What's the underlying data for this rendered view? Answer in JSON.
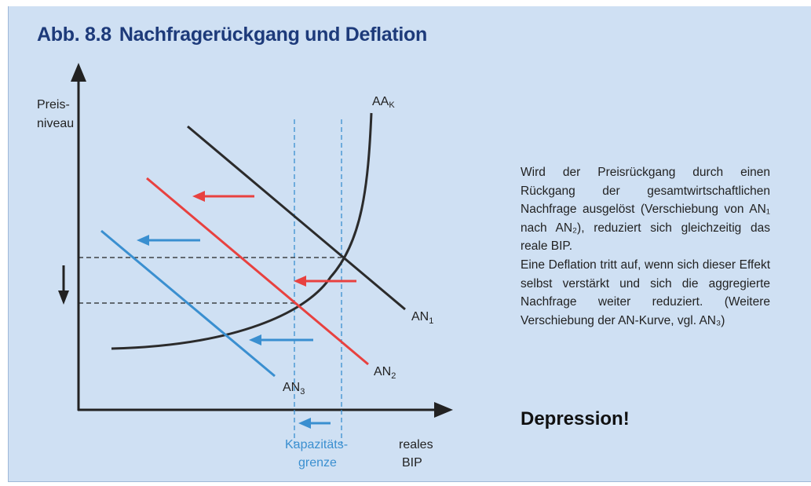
{
  "title": {
    "number": "Abb. 8.8",
    "text": "Nachfragerückgang und Deflation"
  },
  "diagram": {
    "y_axis_label": [
      "Preis-",
      "niveau"
    ],
    "x_axis_label": [
      "reales",
      "BIP"
    ],
    "capacity_label": [
      "Kapazitäts-",
      "grenze"
    ],
    "curves": [
      {
        "id": "AA_K",
        "base": "AA",
        "sub": "K",
        "color": "#2b2b2b"
      },
      {
        "id": "AN_1",
        "base": "AN",
        "sub": "1",
        "color": "#2b2b2b"
      },
      {
        "id": "AN_2",
        "base": "AN",
        "sub": "2",
        "color": "#e8413f"
      },
      {
        "id": "AN_3",
        "base": "AN",
        "sub": "3",
        "color": "#3a8fd0"
      }
    ],
    "colors": {
      "axis": "#222222",
      "an1": "#2b2b2b",
      "an2": "#e8413f",
      "an3": "#3a8fd0",
      "capacity": "#3a8fd0"
    }
  },
  "description": {
    "paragraph1": "Wird der Preisrückgang durch einen Rückgang der gesamtwirtschaftlichen Nachfrage ausgelöst (Verschiebung von AN₁ nach AN₂), reduziert sich gleichzeitig das reale BIP.",
    "paragraph2": "Eine Deflation tritt auf, wenn sich dieser Effekt selbst verstärkt und sich die aggregierte Nachfrage weiter reduziert. (Weitere Verschiebung der AN-Kurve, vgl. AN₃)"
  },
  "headline": "Depression!"
}
